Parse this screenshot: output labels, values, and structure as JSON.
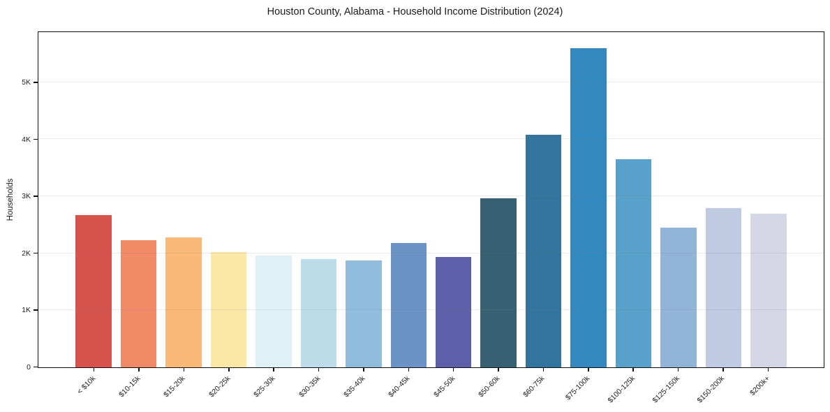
{
  "chart_data": {
    "type": "bar",
    "title": "Houston County, Alabama - Household Income Distribution (2024)",
    "xlabel": "",
    "ylabel": "Households",
    "categories": [
      "< $10k",
      "$10-15k",
      "$15-20k",
      "$20-25k",
      "$25-30k",
      "$30-35k",
      "$35-40k",
      "$40-45k",
      "$45-50k",
      "$50-60k",
      "$60-75k",
      "$75-100k",
      "$100-125k",
      "$125-150k",
      "$150-200k",
      "$200k+"
    ],
    "values": [
      2670,
      2230,
      2280,
      2020,
      1965,
      1905,
      1880,
      2185,
      1930,
      2965,
      4080,
      5600,
      3650,
      2455,
      2795,
      2700
    ],
    "bar_colors": [
      "#d6534b",
      "#f18a67",
      "#fbb978",
      "#fce8a6",
      "#e0f1f6",
      "#bcdcea",
      "#90bddd",
      "#6b93c5",
      "#5d5fa9",
      "#386073",
      "#33749e",
      "#3389bf",
      "#58a1cb",
      "#92b4d8",
      "#bfcbe2",
      "#d5d7e6"
    ],
    "ylim": [
      0,
      5880
    ],
    "yticks": {
      "values": [
        0,
        1000,
        2000,
        3000,
        4000,
        5000
      ],
      "labels": [
        "0",
        "1K",
        "2K",
        "3K",
        "4K",
        "5K"
      ]
    },
    "grid": "horizontal",
    "legend": "none",
    "background_color": "#ffffff",
    "spine_color": "#0d0d0d"
  }
}
